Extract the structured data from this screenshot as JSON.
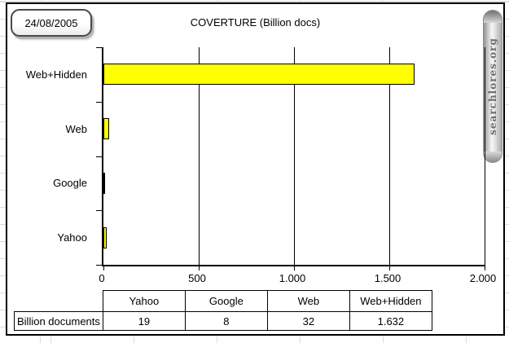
{
  "date_label": "24/08/2005",
  "banner": {
    "text": "searchlores.org"
  },
  "chart_data": {
    "type": "bar",
    "orientation": "horizontal",
    "title": "COVERTURE (Billion docs)",
    "categories": [
      "Web+Hidden",
      "Web",
      "Google",
      "Yahoo"
    ],
    "values": [
      1632,
      32,
      8,
      19
    ],
    "xlim": [
      0,
      2000
    ],
    "x_ticks": [
      {
        "label": "0",
        "value": 0
      },
      {
        "label": "500",
        "value": 500
      },
      {
        "label": "1.000",
        "value": 1000
      },
      {
        "label": "1.500",
        "value": 1500
      },
      {
        "label": "2.000",
        "value": 2000
      }
    ],
    "bar_color": "#ffff00",
    "grid": true,
    "legend": false
  },
  "table": {
    "row_label": "Billion documents",
    "columns": [
      "Yahoo",
      "Google",
      "Web",
      "Web+Hidden"
    ],
    "values": [
      "19",
      "8",
      "32",
      "1.632"
    ]
  }
}
